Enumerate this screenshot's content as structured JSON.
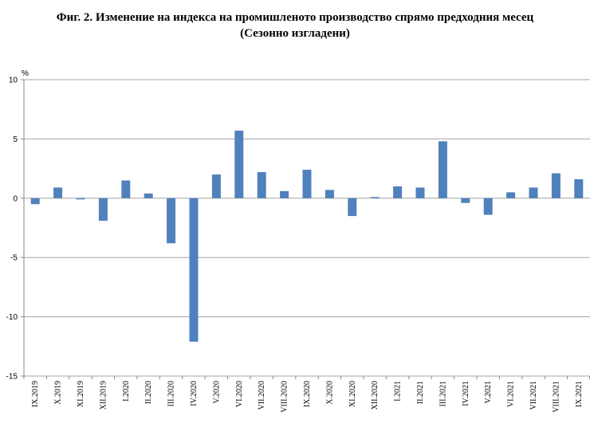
{
  "chart_data": {
    "type": "bar",
    "title": "Фиг. 2. Изменение на индекса на промишленото производство спрямо предходния месец",
    "subtitle": "(Сезонно изгладени)",
    "ylabel": "%",
    "xlabel": "",
    "ylim": [
      -15,
      10
    ],
    "yticks": [
      10,
      5,
      0,
      -5,
      -10,
      -15
    ],
    "grid": true,
    "categories": [
      "IX.2019",
      "X.2019",
      "XI.2019",
      "XII.2019",
      "I.2020",
      "II.2020",
      "III.2020",
      "IV.2020",
      "V.2020",
      "VI.2020",
      "VII.2020",
      "VIII.2020",
      "IX.2020",
      "X.2020",
      "XI.2020",
      "XII.2020",
      "I.2021",
      "II.2021",
      "III.2021",
      "IV.2021",
      "V.2021",
      "VI.2021",
      "VII.2021",
      "VIII.2021",
      "IX.2021"
    ],
    "values": [
      -0.5,
      0.9,
      -0.1,
      -1.9,
      1.5,
      0.4,
      -3.8,
      -12.1,
      2.0,
      5.7,
      2.2,
      0.6,
      2.4,
      0.7,
      -1.5,
      0.1,
      1.0,
      0.9,
      4.8,
      -0.4,
      -1.4,
      0.5,
      0.9,
      2.1,
      1.6
    ],
    "bar_color": "#4f81bd"
  }
}
